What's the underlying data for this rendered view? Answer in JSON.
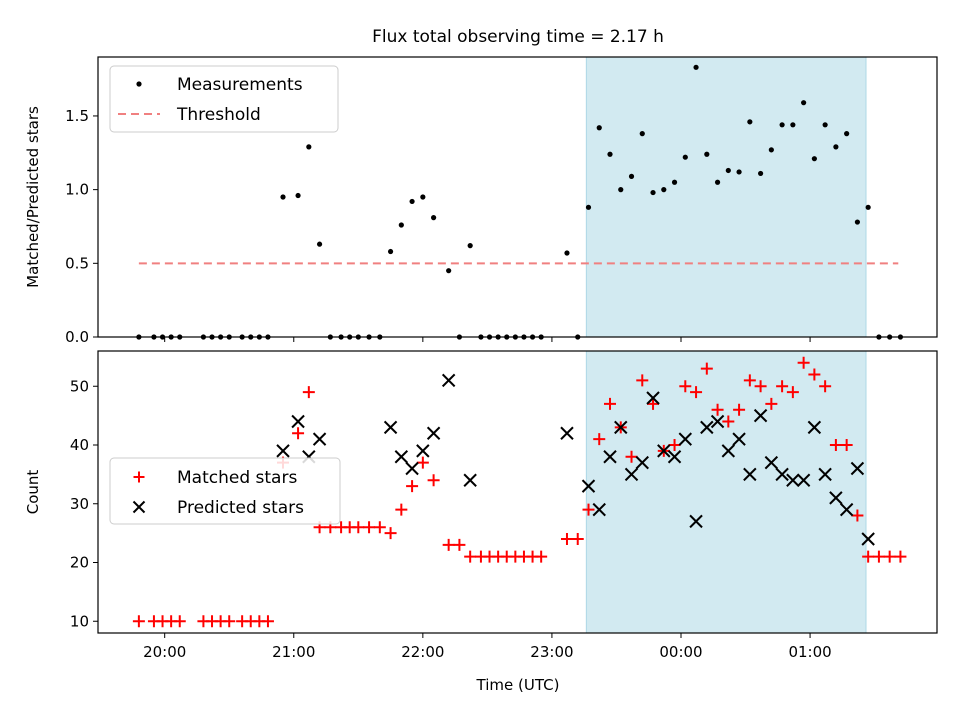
{
  "title": "Flux total observing time = 2.17 h",
  "xlabel": "Time (UTC)",
  "x_ticks": [
    "20:00",
    "21:00",
    "22:00",
    "23:00",
    "00:00",
    "01:00"
  ],
  "colors": {
    "measurement": "#000000",
    "threshold": "#f08080",
    "matched": "#ff0000",
    "predicted": "#000000",
    "shade": "#add8e6"
  },
  "chart_data": [
    {
      "type": "scatter",
      "ylabel": "Matched/Predicted stars",
      "xlim": [
        "19:29",
        "01:59"
      ],
      "ylim": [
        0,
        1.9
      ],
      "y_ticks": [
        "0.0",
        "0.5",
        "1.0",
        "1.5"
      ],
      "grid": false,
      "legend": "top-left",
      "shaded_region": [
        "23:16",
        "01:26"
      ],
      "threshold": {
        "name": "Threshold",
        "y": 0.5,
        "x": [
          "19:48",
          "01:41"
        ]
      },
      "series": [
        {
          "name": "Measurements",
          "points": [
            [
              "19:48",
              0
            ],
            [
              "19:55",
              0
            ],
            [
              "19:59",
              0
            ],
            [
              "20:03",
              0
            ],
            [
              "20:07",
              0
            ],
            [
              "20:18",
              0
            ],
            [
              "20:22",
              0
            ],
            [
              "20:26",
              0
            ],
            [
              "20:30",
              0
            ],
            [
              "20:36",
              0
            ],
            [
              "20:40",
              0
            ],
            [
              "20:44",
              0
            ],
            [
              "20:48",
              0
            ],
            [
              "20:55",
              0.95
            ],
            [
              "21:02",
              0.96
            ],
            [
              "21:07",
              1.29
            ],
            [
              "21:12",
              0.63
            ],
            [
              "21:17",
              0
            ],
            [
              "21:22",
              0
            ],
            [
              "21:26",
              0
            ],
            [
              "21:30",
              0
            ],
            [
              "21:35",
              0
            ],
            [
              "21:40",
              0
            ],
            [
              "21:45",
              0.58
            ],
            [
              "21:50",
              0.76
            ],
            [
              "21:55",
              0.92
            ],
            [
              "22:00",
              0.95
            ],
            [
              "22:05",
              0.81
            ],
            [
              "22:12",
              0.45
            ],
            [
              "22:17",
              0
            ],
            [
              "22:22",
              0.62
            ],
            [
              "22:27",
              0
            ],
            [
              "22:31",
              0
            ],
            [
              "22:35",
              0
            ],
            [
              "22:39",
              0
            ],
            [
              "22:43",
              0
            ],
            [
              "22:47",
              0
            ],
            [
              "22:51",
              0
            ],
            [
              "22:55",
              0
            ],
            [
              "23:07",
              0.57
            ],
            [
              "23:12",
              0
            ],
            [
              "23:17",
              0.88
            ],
            [
              "23:22",
              1.42
            ],
            [
              "23:27",
              1.24
            ],
            [
              "23:32",
              1.0
            ],
            [
              "23:37",
              1.09
            ],
            [
              "23:42",
              1.38
            ],
            [
              "23:47",
              0.98
            ],
            [
              "23:52",
              1.0
            ],
            [
              "23:57",
              1.05
            ],
            [
              "00:02",
              1.22
            ],
            [
              "00:07",
              1.83
            ],
            [
              "00:12",
              1.24
            ],
            [
              "00:17",
              1.05
            ],
            [
              "00:22",
              1.13
            ],
            [
              "00:27",
              1.12
            ],
            [
              "00:32",
              1.46
            ],
            [
              "00:37",
              1.11
            ],
            [
              "00:42",
              1.27
            ],
            [
              "00:47",
              1.44
            ],
            [
              "00:52",
              1.44
            ],
            [
              "00:57",
              1.59
            ],
            [
              "01:02",
              1.21
            ],
            [
              "01:07",
              1.44
            ],
            [
              "01:12",
              1.29
            ],
            [
              "01:17",
              1.38
            ],
            [
              "01:22",
              0.78
            ],
            [
              "01:27",
              0.88
            ],
            [
              "01:32",
              0
            ],
            [
              "01:37",
              0
            ],
            [
              "01:42",
              0
            ]
          ]
        }
      ]
    },
    {
      "type": "scatter",
      "ylabel": "Count",
      "xlim": [
        "19:29",
        "01:59"
      ],
      "ylim": [
        8,
        56
      ],
      "y_ticks": [
        "10",
        "20",
        "30",
        "40",
        "50"
      ],
      "grid": false,
      "legend": "center-left",
      "shaded_region": [
        "23:16",
        "01:26"
      ],
      "series": [
        {
          "name": "Matched stars",
          "marker": "plus",
          "points": [
            [
              "19:48",
              10
            ],
            [
              "19:55",
              10
            ],
            [
              "19:59",
              10
            ],
            [
              "20:03",
              10
            ],
            [
              "20:07",
              10
            ],
            [
              "20:18",
              10
            ],
            [
              "20:22",
              10
            ],
            [
              "20:26",
              10
            ],
            [
              "20:30",
              10
            ],
            [
              "20:36",
              10
            ],
            [
              "20:40",
              10
            ],
            [
              "20:44",
              10
            ],
            [
              "20:48",
              10
            ],
            [
              "20:55",
              37
            ],
            [
              "21:02",
              42
            ],
            [
              "21:07",
              49
            ],
            [
              "21:12",
              26
            ],
            [
              "21:17",
              26
            ],
            [
              "21:22",
              26
            ],
            [
              "21:26",
              26
            ],
            [
              "21:30",
              26
            ],
            [
              "21:35",
              26
            ],
            [
              "21:40",
              26
            ],
            [
              "21:45",
              25
            ],
            [
              "21:50",
              29
            ],
            [
              "21:55",
              33
            ],
            [
              "22:00",
              37
            ],
            [
              "22:05",
              34
            ],
            [
              "22:12",
              23
            ],
            [
              "22:17",
              23
            ],
            [
              "22:22",
              21
            ],
            [
              "22:27",
              21
            ],
            [
              "22:31",
              21
            ],
            [
              "22:35",
              21
            ],
            [
              "22:39",
              21
            ],
            [
              "22:43",
              21
            ],
            [
              "22:47",
              21
            ],
            [
              "22:51",
              21
            ],
            [
              "22:55",
              21
            ],
            [
              "23:07",
              24
            ],
            [
              "23:12",
              24
            ],
            [
              "23:17",
              29
            ],
            [
              "23:22",
              41
            ],
            [
              "23:27",
              47
            ],
            [
              "23:32",
              43
            ],
            [
              "23:37",
              38
            ],
            [
              "23:42",
              51
            ],
            [
              "23:47",
              47
            ],
            [
              "23:52",
              39
            ],
            [
              "23:57",
              40
            ],
            [
              "00:02",
              50
            ],
            [
              "00:07",
              49
            ],
            [
              "00:12",
              53
            ],
            [
              "00:17",
              46
            ],
            [
              "00:22",
              44
            ],
            [
              "00:27",
              46
            ],
            [
              "00:32",
              51
            ],
            [
              "00:37",
              50
            ],
            [
              "00:42",
              47
            ],
            [
              "00:47",
              50
            ],
            [
              "00:52",
              49
            ],
            [
              "00:57",
              54
            ],
            [
              "01:02",
              52
            ],
            [
              "01:07",
              50
            ],
            [
              "01:12",
              40
            ],
            [
              "01:17",
              40
            ],
            [
              "01:22",
              28
            ],
            [
              "01:27",
              21
            ],
            [
              "01:32",
              21
            ],
            [
              "01:37",
              21
            ],
            [
              "01:42",
              21
            ]
          ]
        },
        {
          "name": "Predicted stars",
          "marker": "x",
          "points": [
            [
              "20:55",
              39
            ],
            [
              "21:02",
              44
            ],
            [
              "21:07",
              38
            ],
            [
              "21:12",
              41
            ],
            [
              "21:45",
              43
            ],
            [
              "21:50",
              38
            ],
            [
              "21:55",
              36
            ],
            [
              "22:00",
              39
            ],
            [
              "22:05",
              42
            ],
            [
              "22:12",
              51
            ],
            [
              "22:22",
              34
            ],
            [
              "23:07",
              42
            ],
            [
              "23:17",
              33
            ],
            [
              "23:22",
              29
            ],
            [
              "23:27",
              38
            ],
            [
              "23:32",
              43
            ],
            [
              "23:37",
              35
            ],
            [
              "23:42",
              37
            ],
            [
              "23:47",
              48
            ],
            [
              "23:52",
              39
            ],
            [
              "23:57",
              38
            ],
            [
              "00:02",
              41
            ],
            [
              "00:07",
              27
            ],
            [
              "00:12",
              43
            ],
            [
              "00:17",
              44
            ],
            [
              "00:22",
              39
            ],
            [
              "00:27",
              41
            ],
            [
              "00:32",
              35
            ],
            [
              "00:37",
              45
            ],
            [
              "00:42",
              37
            ],
            [
              "00:47",
              35
            ],
            [
              "00:52",
              34
            ],
            [
              "00:57",
              34
            ],
            [
              "01:02",
              43
            ],
            [
              "01:07",
              35
            ],
            [
              "01:12",
              31
            ],
            [
              "01:17",
              29
            ],
            [
              "01:22",
              36
            ],
            [
              "01:27",
              24
            ]
          ]
        }
      ]
    }
  ]
}
